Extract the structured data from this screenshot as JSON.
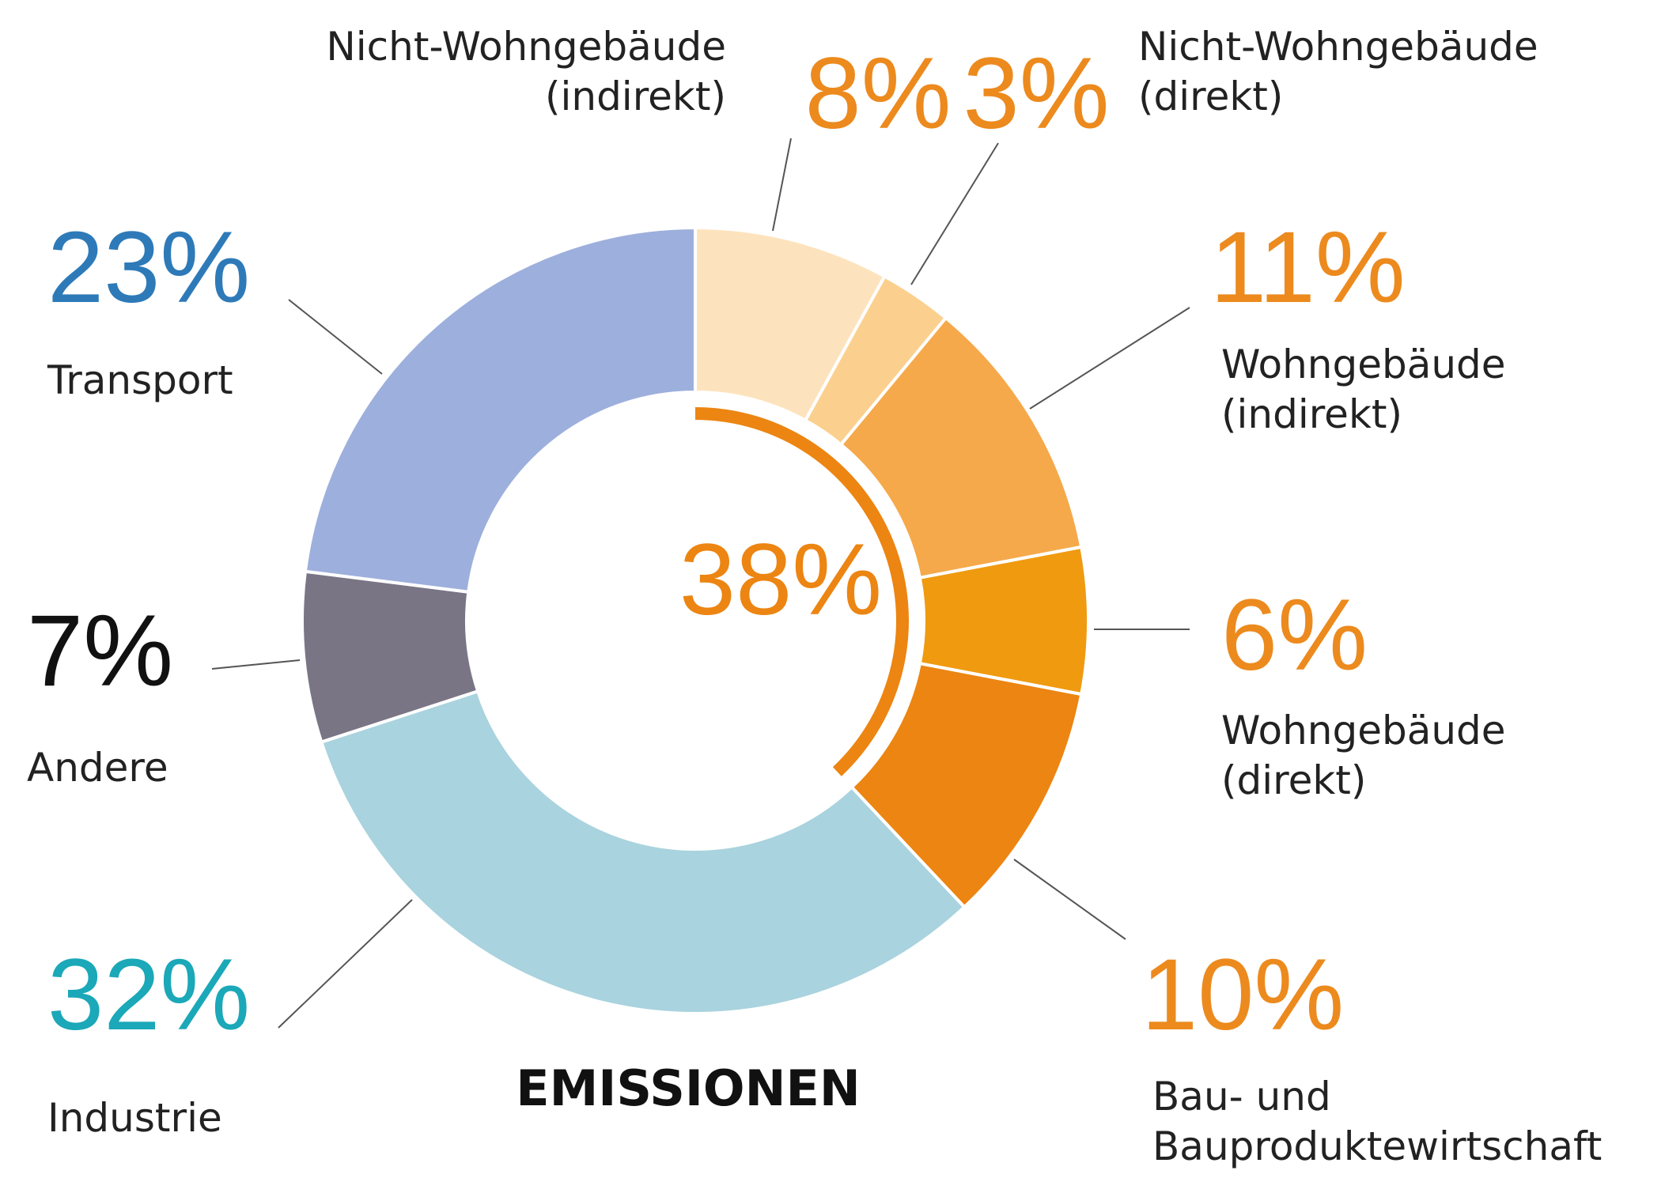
{
  "chart_data": {
    "type": "pie",
    "donut": true,
    "categories": [
      "Nicht-Wohngebäude\n(indirekt)",
      "Nicht-Wohngebäude\n(direkt)",
      "Wohngebäude\n(indirekt)",
      "Wohngebäude\n(direkt)",
      "Bau- und\nBauproduktewirtschaft",
      "Industrie",
      "Andere",
      "Transport"
    ],
    "values": [
      8,
      3,
      11,
      6,
      10,
      32,
      7,
      23
    ],
    "value_labels": [
      "8%",
      "3%",
      "11%",
      "6%",
      "10%",
      "32%",
      "7%",
      "23%"
    ],
    "colors": [
      "#fde3bd",
      "#fbd08e",
      "#f5a94a",
      "#f09a10",
      "#ec8512",
      "#a9d3de",
      "#7a7585",
      "#9dafdc"
    ],
    "label_colors": [
      "#ec8a1e",
      "#ec8a1e",
      "#ec8a1e",
      "#ec8a1e",
      "#ec8a1e",
      "#1ba8b8",
      "#111111",
      "#2e7ab8"
    ],
    "center_value": 38,
    "center_label": "38%",
    "center_color": "#ec8512",
    "title": "EMISSIONEN"
  }
}
